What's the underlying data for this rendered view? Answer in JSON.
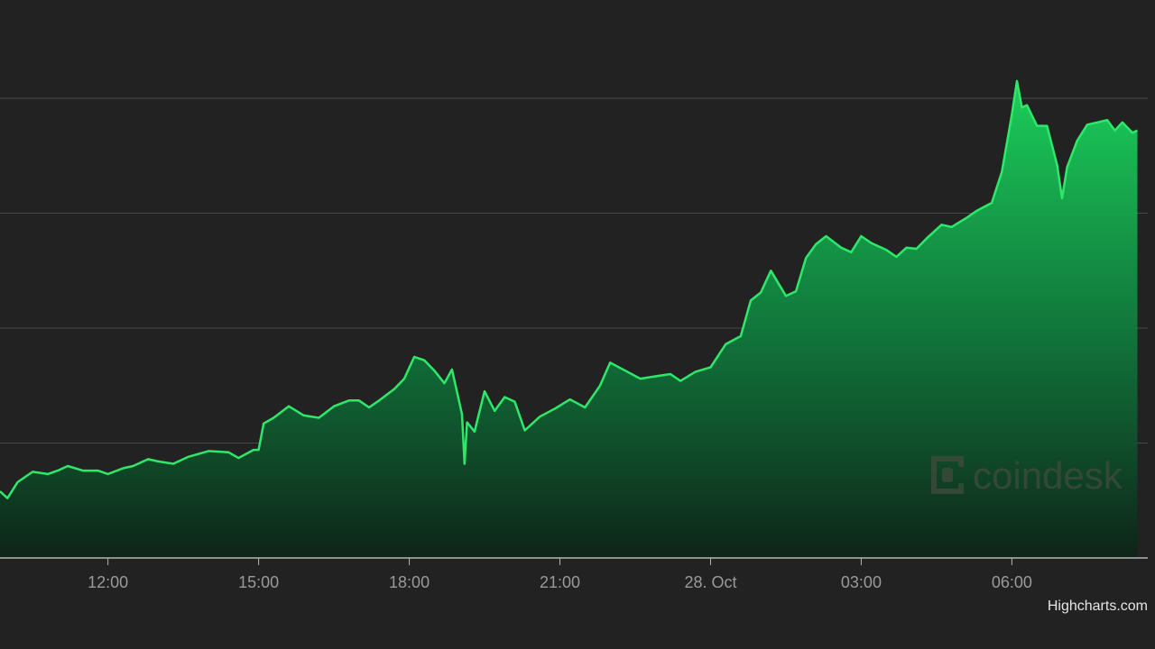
{
  "chart_data": {
    "type": "area",
    "x_ticks": [
      "12:00",
      "15:00",
      "18:00",
      "21:00",
      "28. Oct",
      "03:00",
      "06:00"
    ],
    "x_tick_hours": [
      12,
      15,
      18,
      21,
      24,
      27,
      30
    ],
    "x_range_hours": [
      9.85,
      32.85
    ],
    "ylim": [
      0,
      4
    ],
    "y_gridlines": [
      1,
      2,
      3,
      4
    ],
    "series": [
      {
        "color": "#2ee86a",
        "points": [
          [
            9.85,
            0.58
          ],
          [
            10.0,
            0.52
          ],
          [
            10.2,
            0.66
          ],
          [
            10.5,
            0.75
          ],
          [
            10.8,
            0.73
          ],
          [
            11.0,
            0.76
          ],
          [
            11.2,
            0.8
          ],
          [
            11.5,
            0.76
          ],
          [
            11.8,
            0.76
          ],
          [
            12.0,
            0.73
          ],
          [
            12.3,
            0.78
          ],
          [
            12.5,
            0.8
          ],
          [
            12.8,
            0.86
          ],
          [
            13.0,
            0.84
          ],
          [
            13.3,
            0.82
          ],
          [
            13.6,
            0.88
          ],
          [
            14.0,
            0.93
          ],
          [
            14.4,
            0.92
          ],
          [
            14.6,
            0.87
          ],
          [
            14.9,
            0.94
          ],
          [
            15.0,
            0.94
          ],
          [
            15.1,
            1.17
          ],
          [
            15.3,
            1.22
          ],
          [
            15.6,
            1.32
          ],
          [
            15.9,
            1.24
          ],
          [
            16.2,
            1.22
          ],
          [
            16.5,
            1.32
          ],
          [
            16.8,
            1.37
          ],
          [
            17.0,
            1.37
          ],
          [
            17.2,
            1.31
          ],
          [
            17.4,
            1.37
          ],
          [
            17.7,
            1.47
          ],
          [
            17.9,
            1.56
          ],
          [
            18.1,
            1.75
          ],
          [
            18.3,
            1.72
          ],
          [
            18.5,
            1.63
          ],
          [
            18.7,
            1.52
          ],
          [
            18.85,
            1.64
          ],
          [
            19.05,
            1.25
          ],
          [
            19.1,
            0.82
          ],
          [
            19.15,
            1.18
          ],
          [
            19.3,
            1.1
          ],
          [
            19.5,
            1.45
          ],
          [
            19.7,
            1.28
          ],
          [
            19.9,
            1.4
          ],
          [
            20.1,
            1.36
          ],
          [
            20.3,
            1.11
          ],
          [
            20.6,
            1.23
          ],
          [
            20.9,
            1.3
          ],
          [
            21.2,
            1.38
          ],
          [
            21.5,
            1.31
          ],
          [
            21.8,
            1.5
          ],
          [
            22.0,
            1.7
          ],
          [
            22.3,
            1.63
          ],
          [
            22.6,
            1.56
          ],
          [
            22.9,
            1.58
          ],
          [
            23.2,
            1.6
          ],
          [
            23.4,
            1.54
          ],
          [
            23.7,
            1.62
          ],
          [
            24.0,
            1.66
          ],
          [
            24.3,
            1.86
          ],
          [
            24.6,
            1.93
          ],
          [
            24.8,
            2.24
          ],
          [
            25.0,
            2.31
          ],
          [
            25.2,
            2.5
          ],
          [
            25.5,
            2.28
          ],
          [
            25.7,
            2.32
          ],
          [
            25.9,
            2.61
          ],
          [
            26.1,
            2.73
          ],
          [
            26.3,
            2.8
          ],
          [
            26.6,
            2.7
          ],
          [
            26.8,
            2.66
          ],
          [
            27.0,
            2.8
          ],
          [
            27.2,
            2.74
          ],
          [
            27.5,
            2.68
          ],
          [
            27.7,
            2.62
          ],
          [
            27.9,
            2.7
          ],
          [
            28.1,
            2.69
          ],
          [
            28.3,
            2.78
          ],
          [
            28.6,
            2.9
          ],
          [
            28.8,
            2.88
          ],
          [
            29.1,
            2.96
          ],
          [
            29.3,
            3.02
          ],
          [
            29.6,
            3.09
          ],
          [
            29.8,
            3.36
          ],
          [
            30.0,
            3.86
          ],
          [
            30.1,
            4.15
          ],
          [
            30.2,
            3.92
          ],
          [
            30.3,
            3.94
          ],
          [
            30.5,
            3.76
          ],
          [
            30.7,
            3.76
          ],
          [
            30.9,
            3.42
          ],
          [
            31.0,
            3.13
          ],
          [
            31.1,
            3.4
          ],
          [
            31.3,
            3.63
          ],
          [
            31.5,
            3.77
          ],
          [
            31.7,
            3.79
          ],
          [
            31.9,
            3.81
          ],
          [
            32.05,
            3.72
          ],
          [
            32.2,
            3.79
          ],
          [
            32.4,
            3.7
          ],
          [
            32.5,
            3.72
          ]
        ]
      }
    ]
  },
  "watermark": {
    "text": "coindesk",
    "color": "#3c4a3c"
  },
  "credit": {
    "text": "Highcharts.com"
  },
  "colors": {
    "background": "#222222",
    "line": "#2ee86a",
    "area_top": "#1bd85e",
    "area_bottom": "#0d2418",
    "gridline": "#4a4a4a",
    "axis_line": "#b5b5b5",
    "tick_text": "#9a9a9a"
  }
}
